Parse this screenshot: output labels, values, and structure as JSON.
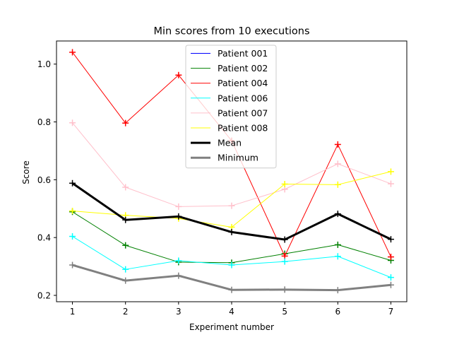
{
  "chart_data": {
    "type": "line",
    "title": "Min scores from 10 executions",
    "xlabel": "Experiment number",
    "ylabel": "Score",
    "x": [
      1,
      2,
      3,
      4,
      5,
      6,
      7
    ],
    "xlim": [
      0.7,
      7.3
    ],
    "ylim": [
      0.178,
      1.08
    ],
    "xticks": [
      1,
      2,
      3,
      4,
      5,
      6,
      7
    ],
    "yticks": [
      0.2,
      0.4,
      0.6,
      0.8,
      1.0
    ],
    "ytick_labels": [
      "0.2",
      "0.4",
      "0.6",
      "0.8",
      "1.0"
    ],
    "grid": false,
    "legend_position": "top-center",
    "marker": "plus",
    "series": [
      {
        "name": "Patient 001",
        "color": "#0000ff",
        "width": 1,
        "values": [
          null,
          null,
          null,
          null,
          null,
          null,
          null
        ]
      },
      {
        "name": "Patient 002",
        "color": "#008000",
        "width": 1,
        "values": [
          0.489,
          0.373,
          0.315,
          0.313,
          0.344,
          0.375,
          0.321
        ]
      },
      {
        "name": "Patient 004",
        "color": "#ff0000",
        "width": 1,
        "values": [
          1.041,
          0.796,
          0.962,
          0.735,
          0.336,
          0.722,
          0.333
        ]
      },
      {
        "name": "Patient 006",
        "color": "#00ffff",
        "width": 1,
        "values": [
          0.404,
          0.29,
          0.32,
          0.305,
          0.317,
          0.335,
          0.262
        ]
      },
      {
        "name": "Patient 007",
        "color": "#ffc0cb",
        "width": 1,
        "values": [
          0.797,
          0.574,
          0.507,
          0.51,
          0.567,
          0.655,
          0.586
        ]
      },
      {
        "name": "Patient 008",
        "color": "#ffff00",
        "width": 1,
        "values": [
          0.492,
          0.477,
          0.466,
          0.436,
          0.585,
          0.583,
          0.628
        ]
      },
      {
        "name": "Mean",
        "color": "#000000",
        "width": 3,
        "values": [
          0.588,
          0.461,
          0.473,
          0.419,
          0.393,
          0.482,
          0.394
        ]
      },
      {
        "name": "Minimum",
        "color": "#808080",
        "width": 3,
        "values": [
          0.305,
          0.251,
          0.268,
          0.219,
          0.22,
          0.218,
          0.236
        ]
      }
    ]
  }
}
